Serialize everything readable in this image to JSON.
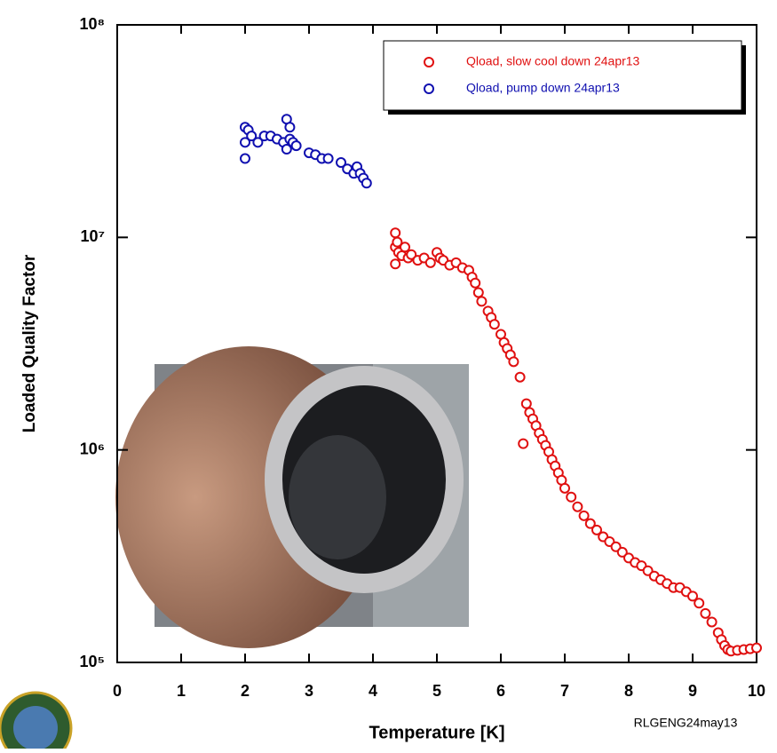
{
  "chart_data": {
    "type": "scatter",
    "xlabel": "Temperature [K]",
    "ylabel": "Loaded Quality Factor",
    "annotation": "RLGENG24may13",
    "xlim": [
      0,
      10
    ],
    "ylim": [
      100000,
      100000000
    ],
    "ylog": true,
    "xticks": [
      0,
      1,
      2,
      3,
      4,
      5,
      6,
      7,
      8,
      9,
      10
    ],
    "yticks": [
      {
        "value": 100000,
        "label": "10⁵"
      },
      {
        "value": 1000000,
        "label": "10⁶"
      },
      {
        "value": 10000000,
        "label": "10⁷"
      },
      {
        "value": 100000000,
        "label": "10⁸"
      }
    ],
    "legend": "upper right",
    "series": [
      {
        "name": "Qload, slow cool down 24apr13",
        "color": "#e01010",
        "x": [
          4.35,
          4.35,
          4.35,
          4.38,
          4.4,
          4.45,
          4.5,
          4.55,
          4.6,
          4.7,
          4.8,
          4.9,
          5.0,
          5.05,
          5.1,
          5.2,
          5.3,
          5.4,
          5.5,
          5.55,
          5.6,
          5.65,
          5.7,
          5.8,
          5.85,
          5.9,
          6.0,
          6.05,
          6.1,
          6.15,
          6.2,
          6.3,
          6.35,
          6.4,
          6.45,
          6.5,
          6.55,
          6.6,
          6.65,
          6.7,
          6.75,
          6.8,
          6.85,
          6.9,
          6.95,
          7.0,
          7.1,
          7.2,
          7.3,
          7.4,
          7.5,
          7.6,
          7.7,
          7.8,
          7.9,
          8.0,
          8.1,
          8.2,
          8.3,
          8.4,
          8.5,
          8.6,
          8.7,
          8.8,
          8.9,
          9.0,
          9.1,
          9.2,
          9.3,
          9.4,
          9.45,
          9.5,
          9.55,
          9.6,
          9.7,
          9.8,
          9.9,
          10.0
        ],
        "values": [
          10500000,
          9000000,
          7500000,
          9500000,
          8500000,
          8200000,
          9000000,
          8000000,
          8300000,
          7800000,
          8000000,
          7600000,
          8500000,
          8000000,
          7800000,
          7400000,
          7600000,
          7200000,
          7000000,
          6500000,
          6100000,
          5500000,
          5000000,
          4500000,
          4200000,
          3900000,
          3500000,
          3200000,
          3000000,
          2800000,
          2600000,
          2200000,
          1070000,
          1650000,
          1500000,
          1400000,
          1300000,
          1200000,
          1120000,
          1050000,
          980000,
          900000,
          840000,
          780000,
          720000,
          660000,
          600000,
          540000,
          490000,
          450000,
          420000,
          390000,
          370000,
          350000,
          330000,
          310000,
          295000,
          285000,
          270000,
          255000,
          245000,
          235000,
          225000,
          225000,
          215000,
          205000,
          190000,
          170000,
          155000,
          138000,
          128000,
          120000,
          115000,
          113000,
          114000,
          115000,
          116000,
          117000
        ]
      },
      {
        "name": "Qload, pump down 24apr13",
        "color": "#1010b0",
        "x": [
          2.0,
          2.0,
          2.0,
          2.05,
          2.1,
          2.2,
          2.3,
          2.4,
          2.5,
          2.6,
          2.65,
          2.65,
          2.7,
          2.7,
          2.75,
          2.8,
          3.0,
          3.1,
          3.2,
          3.3,
          3.5,
          3.6,
          3.7,
          3.75,
          3.8,
          3.85,
          3.9
        ],
        "values": [
          23500000,
          28000000,
          33000000,
          32000000,
          30000000,
          28000000,
          30000000,
          30000000,
          29000000,
          28000000,
          36000000,
          26000000,
          33000000,
          29000000,
          28000000,
          27000000,
          25000000,
          24500000,
          23500000,
          23500000,
          22500000,
          21000000,
          20000000,
          21500000,
          20000000,
          19000000,
          18000000
        ]
      }
    ]
  }
}
